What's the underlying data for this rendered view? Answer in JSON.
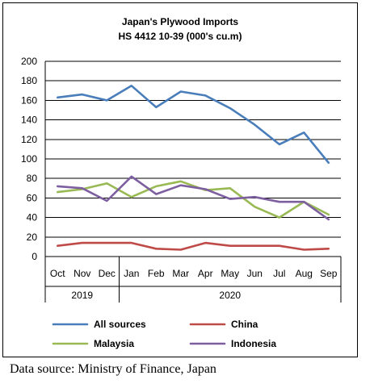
{
  "chart_data": {
    "type": "line",
    "title": "Japan's Plywood Imports",
    "subtitle": "HS 4412 10-39 (000's cu.m)",
    "categories": [
      "Oct",
      "Nov",
      "Dec",
      "Jan",
      "Feb",
      "Mar",
      "Apr",
      "May",
      "Jun",
      "Jul",
      "Aug",
      "Sep"
    ],
    "year_groups": [
      {
        "label": "2019",
        "span": 3
      },
      {
        "label": "2020",
        "span": 9
      }
    ],
    "ylim": [
      0,
      200
    ],
    "yticks": [
      0,
      20,
      40,
      60,
      80,
      100,
      120,
      140,
      160,
      180,
      200
    ],
    "grid": "horizontal",
    "legend": "bottom",
    "series": [
      {
        "name": "All sources",
        "color": "#4a7ebb",
        "values": [
          163,
          166,
          160,
          175,
          153,
          169,
          165,
          152,
          135,
          115,
          127,
          96
        ]
      },
      {
        "name": "China",
        "color": "#be4b48",
        "values": [
          11,
          14,
          14,
          14,
          8,
          7,
          14,
          11,
          11,
          11,
          7,
          8
        ]
      },
      {
        "name": "Malaysia",
        "color": "#98b954",
        "values": [
          66,
          69,
          75,
          61,
          72,
          77,
          68,
          70,
          51,
          40,
          56,
          43
        ]
      },
      {
        "name": "Indonesia",
        "color": "#7d5fa0",
        "values": [
          72,
          70,
          57,
          82,
          64,
          73,
          69,
          59,
          61,
          56,
          56,
          38
        ]
      }
    ]
  },
  "source_note": "Data source: Ministry of Finance, Japan"
}
